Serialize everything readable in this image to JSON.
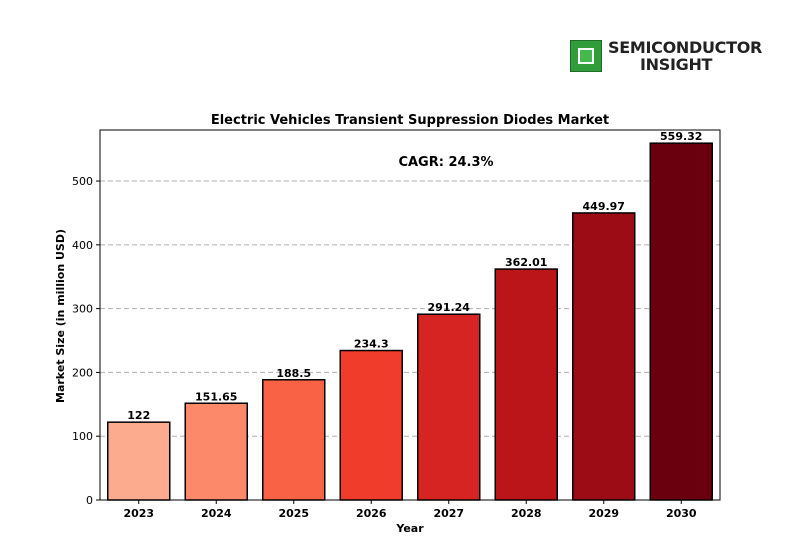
{
  "logo": {
    "line1": "SEMICONDUCTOR",
    "line2": "INSIGHT"
  },
  "chart_data": {
    "type": "bar",
    "title": "Electric Vehicles Transient Suppression Diodes Market",
    "xlabel": "Year",
    "ylabel": "Market Size (in million USD)",
    "annotation": "CAGR: 24.3%",
    "categories": [
      "2023",
      "2024",
      "2025",
      "2026",
      "2027",
      "2028",
      "2029",
      "2030"
    ],
    "values": [
      122,
      151.65,
      188.5,
      234.3,
      291.24,
      362.01,
      449.97,
      559.32
    ],
    "value_labels": [
      "122",
      "151.65",
      "188.5",
      "234.3",
      "291.24",
      "362.01",
      "449.97",
      "559.32"
    ],
    "ylim": [
      0,
      580
    ],
    "yticks": [
      0,
      100,
      200,
      300,
      400,
      500
    ],
    "grid": true,
    "colors": [
      "#fcab8f",
      "#fc8a6a",
      "#f96245",
      "#f03c2b",
      "#d62422",
      "#bb151a",
      "#9b0c14",
      "#6a000d"
    ]
  }
}
